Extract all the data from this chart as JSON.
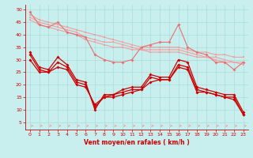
{
  "x": [
    0,
    1,
    2,
    3,
    4,
    5,
    6,
    7,
    8,
    9,
    10,
    11,
    12,
    13,
    14,
    15,
    16,
    17,
    18,
    19,
    20,
    21,
    22,
    23
  ],
  "line_pink1": [
    49,
    44,
    43,
    45,
    41,
    40,
    39,
    32,
    30,
    29,
    29,
    30,
    35,
    36,
    37,
    37,
    44,
    35,
    33,
    32,
    29,
    29,
    26,
    29
  ],
  "line_lt1": [
    48,
    46,
    45,
    44,
    43,
    42,
    41,
    40,
    39,
    38,
    37,
    36,
    35,
    35,
    35,
    35,
    35,
    34,
    33,
    33,
    32,
    32,
    31,
    31
  ],
  "line_lt2": [
    47,
    45,
    44,
    43,
    42,
    41,
    39,
    38,
    37,
    37,
    36,
    35,
    34,
    34,
    34,
    34,
    34,
    33,
    32,
    31,
    31,
    30,
    29,
    29
  ],
  "line_lt3": [
    46,
    44,
    43,
    42,
    41,
    40,
    38,
    37,
    36,
    35,
    35,
    34,
    34,
    33,
    33,
    33,
    33,
    32,
    31,
    31,
    30,
    29,
    29,
    28
  ],
  "line_red1": [
    33,
    27,
    26,
    31,
    28,
    22,
    21,
    10,
    16,
    16,
    18,
    19,
    19,
    24,
    23,
    23,
    30,
    29,
    19,
    18,
    17,
    16,
    16,
    9
  ],
  "line_red2": [
    32,
    26,
    25,
    29,
    27,
    21,
    20,
    11,
    15,
    16,
    17,
    18,
    18,
    23,
    22,
    22,
    28,
    27,
    18,
    17,
    16,
    15,
    15,
    8
  ],
  "line_red3": [
    30,
    25,
    25,
    27,
    26,
    20,
    19,
    12,
    15,
    15,
    16,
    17,
    18,
    21,
    22,
    22,
    27,
    26,
    17,
    17,
    16,
    15,
    14,
    8
  ],
  "color_light": "#f0a0a0",
  "color_pink": "#e87070",
  "color_dark": "#cc0000",
  "bg_color": "#c8eeee",
  "grid_color": "#a8dddd",
  "xlabel": "Vent moyen/en rafales ( km/h )",
  "ylim": [
    2,
    52
  ],
  "xlim": [
    -0.5,
    23.5
  ],
  "yticks": [
    5,
    10,
    15,
    20,
    25,
    30,
    35,
    40,
    45,
    50
  ],
  "xticks": [
    0,
    1,
    2,
    3,
    4,
    5,
    6,
    7,
    8,
    9,
    10,
    11,
    12,
    13,
    14,
    15,
    16,
    17,
    18,
    19,
    20,
    21,
    22,
    23
  ]
}
